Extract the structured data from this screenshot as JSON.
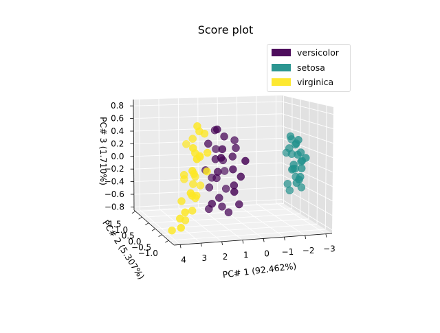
{
  "chart_data": {
    "type": "scatter",
    "projection": "3d",
    "title": "Score plot",
    "xlabel": "PC# 1 (92.462%)",
    "ylabel": "PC# 2 (5.307%)",
    "zlabel": "PC# 3 (1.710%)",
    "xlim": [
      -3.3,
      4.3
    ],
    "ylim": [
      -1.4,
      1.6
    ],
    "zlim": [
      -0.85,
      0.9
    ],
    "xticks": [
      "4",
      "3",
      "2",
      "1",
      "0",
      "−1",
      "−2",
      "−3"
    ],
    "yticks": [
      "−1.0",
      "−0.5",
      "0.0",
      "0.5",
      "1.0",
      "1.5"
    ],
    "zticks": [
      "0.8",
      "0.6",
      "0.4",
      "0.2",
      "0.0",
      "−0.2",
      "−0.4",
      "−0.6",
      "−0.8"
    ],
    "grid": true,
    "legend_position": "top-right",
    "series": [
      {
        "name": "versicolor",
        "color": "#440154",
        "points": [
          [
            1.3,
            -0.3,
            0.6
          ],
          [
            0.9,
            0.5,
            0.5
          ],
          [
            1.5,
            0.1,
            0.35
          ],
          [
            0.2,
            -0.6,
            0.15
          ],
          [
            1.1,
            0.2,
            0.1
          ],
          [
            0.6,
            0.4,
            0.05
          ],
          [
            1.2,
            -0.1,
            -0.05
          ],
          [
            0.4,
            0.0,
            0.15
          ],
          [
            0.8,
            0.6,
            0.2
          ],
          [
            0.3,
            -0.4,
            -0.1
          ],
          [
            1.0,
            0.3,
            -0.2
          ],
          [
            0.5,
            -0.2,
            -0.25
          ],
          [
            1.4,
            0.5,
            -0.1
          ],
          [
            0.1,
            0.2,
            0.25
          ],
          [
            0.7,
            -0.5,
            -0.3
          ],
          [
            1.1,
            0.0,
            -0.45
          ],
          [
            0.4,
            0.5,
            -0.4
          ],
          [
            1.6,
            -0.2,
            -0.5
          ],
          [
            0.9,
            0.1,
            -0.6
          ],
          [
            0.2,
            -0.1,
            -0.55
          ],
          [
            1.3,
            0.4,
            -0.35
          ],
          [
            0.6,
            -0.3,
            0.0
          ],
          [
            0.95,
            0.7,
            -0.25
          ],
          [
            1.25,
            -0.45,
            0.2
          ],
          [
            0.05,
            0.35,
            0.35
          ],
          [
            0.75,
            0.05,
            0.45
          ],
          [
            1.45,
            0.25,
            -0.65
          ],
          [
            0.55,
            0.15,
            -0.7
          ],
          [
            1.05,
            -0.25,
            0.3
          ],
          [
            0.35,
            0.65,
            -0.15
          ]
        ]
      },
      {
        "name": "setosa",
        "color": "#21918c",
        "points": [
          [
            -2.7,
            0.3,
            0.1
          ],
          [
            -2.8,
            -0.2,
            0.05
          ],
          [
            -2.6,
            0.1,
            -0.1
          ],
          [
            -2.9,
            0.0,
            0.15
          ],
          [
            -2.7,
            -0.3,
            -0.05
          ],
          [
            -2.5,
            0.2,
            0.2
          ],
          [
            -2.8,
            0.4,
            -0.15
          ],
          [
            -2.6,
            -0.1,
            0.3
          ],
          [
            -2.9,
            0.3,
            -0.25
          ],
          [
            -2.7,
            0.0,
            -0.3
          ],
          [
            -2.4,
            -0.2,
            0.0
          ],
          [
            -2.8,
            0.2,
            0.25
          ],
          [
            -2.6,
            0.5,
            0.1
          ],
          [
            -2.5,
            -0.4,
            -0.2
          ],
          [
            -3.0,
            0.1,
            0.0
          ],
          [
            -2.7,
            -0.1,
            0.35
          ],
          [
            -2.9,
            -0.3,
            0.1
          ],
          [
            -2.5,
            0.3,
            -0.35
          ],
          [
            -2.7,
            0.1,
            -0.1
          ],
          [
            -2.8,
            -0.1,
            -0.2
          ],
          [
            -3.1,
            0.2,
            -0.4
          ],
          [
            -2.4,
            0.0,
            0.4
          ],
          [
            -2.6,
            0.3,
            -0.45
          ],
          [
            -2.85,
            0.5,
            0.3
          ],
          [
            -2.55,
            -0.25,
            0.15
          ]
        ]
      },
      {
        "name": "virginica",
        "color": "#fde725",
        "points": [
          [
            2.4,
            -0.6,
            0.7
          ],
          [
            2.2,
            -0.4,
            0.6
          ],
          [
            1.9,
            -0.3,
            0.55
          ],
          [
            2.7,
            -0.7,
            0.4
          ],
          [
            2.5,
            -0.5,
            0.3
          ],
          [
            2.1,
            -0.2,
            0.2
          ],
          [
            2.9,
            -0.9,
            0.1
          ],
          [
            2.6,
            -0.5,
            0.0
          ],
          [
            2.3,
            -0.1,
            -0.1
          ],
          [
            3.1,
            -1.0,
            -0.2
          ],
          [
            2.8,
            -0.6,
            -0.3
          ],
          [
            2.0,
            0.0,
            -0.25
          ],
          [
            2.4,
            -0.3,
            -0.35
          ],
          [
            3.3,
            -0.8,
            -0.5
          ],
          [
            2.7,
            -0.4,
            -0.55
          ],
          [
            3.5,
            -0.7,
            -0.6
          ],
          [
            2.2,
            0.1,
            -0.45
          ],
          [
            3.0,
            -0.3,
            -0.7
          ],
          [
            3.8,
            -0.5,
            -0.8
          ],
          [
            2.5,
            0.2,
            0.35
          ],
          [
            1.8,
            0.3,
            0.15
          ],
          [
            2.3,
            0.0,
            0.45
          ],
          [
            2.6,
            -0.8,
            0.25
          ],
          [
            2.9,
            -0.2,
            -0.05
          ],
          [
            3.2,
            -0.4,
            -0.4
          ],
          [
            2.1,
            -0.7,
            0.05
          ],
          [
            2.45,
            -0.15,
            -0.2
          ],
          [
            1.95,
            -0.55,
            0.3
          ],
          [
            3.6,
            -0.9,
            -0.7
          ],
          [
            2.75,
            0.05,
            -0.15
          ]
        ]
      }
    ]
  }
}
